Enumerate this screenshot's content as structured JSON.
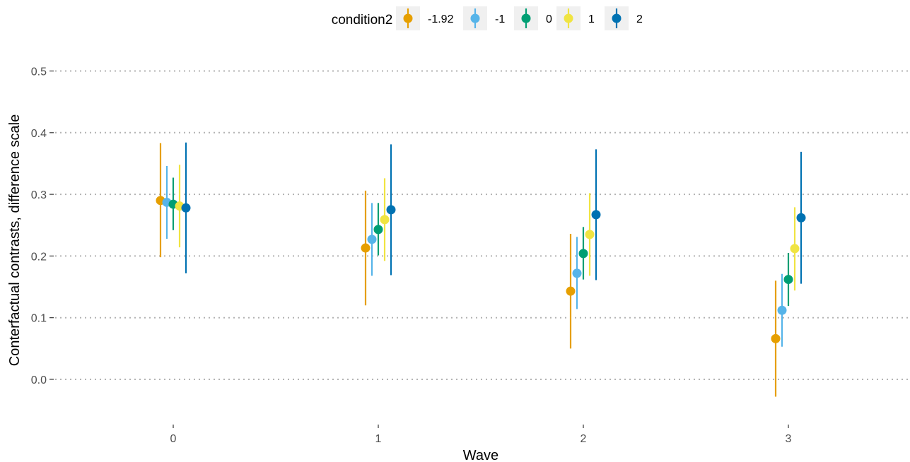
{
  "chart_data": {
    "type": "scatter",
    "subtype": "pointrange",
    "title": "",
    "xlabel": "Wave",
    "ylabel": "Conterfactual contrasts, difference scale",
    "ylim": [
      -0.07,
      0.52
    ],
    "yticks": [
      0.0,
      0.1,
      0.2,
      0.3,
      0.4,
      0.5
    ],
    "ytick_labels": [
      "0.0",
      "0.1",
      "0.2",
      "0.3",
      "0.4",
      "0.5"
    ],
    "categories": [
      "0",
      "1",
      "2",
      "3"
    ],
    "grid": "horizontal dotted",
    "legend": {
      "title": "condition2",
      "position": "top"
    },
    "series": [
      {
        "name": "-1.92",
        "color": "#E69F00",
        "values": [
          0.29,
          0.213,
          0.143,
          0.066
        ],
        "lower": [
          0.198,
          0.12,
          0.05,
          -0.028
        ],
        "upper": [
          0.383,
          0.306,
          0.236,
          0.16
        ]
      },
      {
        "name": "-1",
        "color": "#56B4E9",
        "values": [
          0.287,
          0.227,
          0.172,
          0.112
        ],
        "lower": [
          0.228,
          0.168,
          0.114,
          0.053
        ],
        "upper": [
          0.346,
          0.286,
          0.231,
          0.171
        ]
      },
      {
        "name": "0",
        "color": "#009E73",
        "values": [
          0.284,
          0.243,
          0.204,
          0.162
        ],
        "lower": [
          0.242,
          0.201,
          0.162,
          0.119
        ],
        "upper": [
          0.327,
          0.286,
          0.247,
          0.205
        ]
      },
      {
        "name": "1",
        "color": "#F0E442",
        "values": [
          0.281,
          0.259,
          0.235,
          0.212
        ],
        "lower": [
          0.214,
          0.192,
          0.168,
          0.144
        ],
        "upper": [
          0.348,
          0.326,
          0.302,
          0.279
        ]
      },
      {
        "name": "2",
        "color": "#0072B2",
        "values": [
          0.278,
          0.275,
          0.267,
          0.262
        ],
        "lower": [
          0.172,
          0.169,
          0.161,
          0.155
        ],
        "upper": [
          0.384,
          0.381,
          0.373,
          0.369
        ]
      }
    ]
  }
}
